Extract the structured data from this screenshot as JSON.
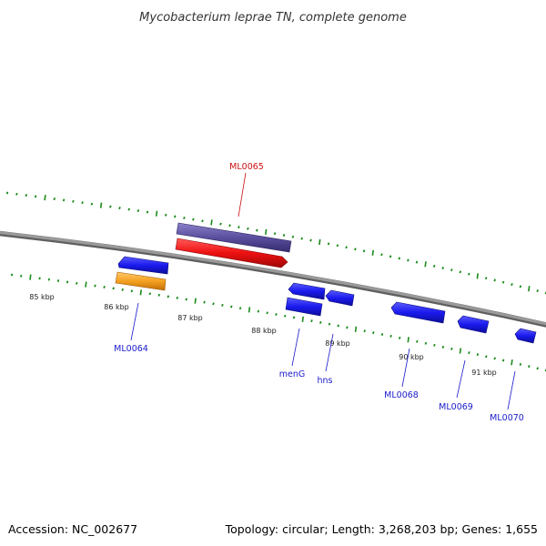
{
  "title": "Mycobacterium leprae TN, complete genome",
  "footer": {
    "accession": "Accession: NC_002677",
    "topology": "Topology: circular; Length: 3,268,203 bp; Genes: 1,655"
  },
  "colors": {
    "backbone": "#8a8a8a",
    "tick": "#1a8a1a",
    "gene_blue": "#1a1aee",
    "gene_purple": "#5a4f9e",
    "gene_red": "#ee1111",
    "gene_orange": "#f5a020",
    "label_blue": "#1a1acc",
    "label_red": "#cc1111"
  },
  "scale_labels": [
    "85 kbp",
    "86 kbp",
    "87 kbp",
    "88 kbp",
    "89 kbp",
    "90 kbp",
    "91 kbp"
  ],
  "gene_labels": [
    {
      "id": "ML0065",
      "text": "ML0065",
      "color": "red"
    },
    {
      "id": "ML0064",
      "text": "ML0064",
      "color": "blue"
    },
    {
      "id": "menG",
      "text": "menG",
      "color": "blue"
    },
    {
      "id": "hns",
      "text": "hns",
      "color": "blue"
    },
    {
      "id": "ML0068",
      "text": "ML0068",
      "color": "blue"
    },
    {
      "id": "ML0069",
      "text": "ML0069",
      "color": "blue"
    },
    {
      "id": "ML0070",
      "text": "ML0070",
      "color": "blue"
    }
  ]
}
